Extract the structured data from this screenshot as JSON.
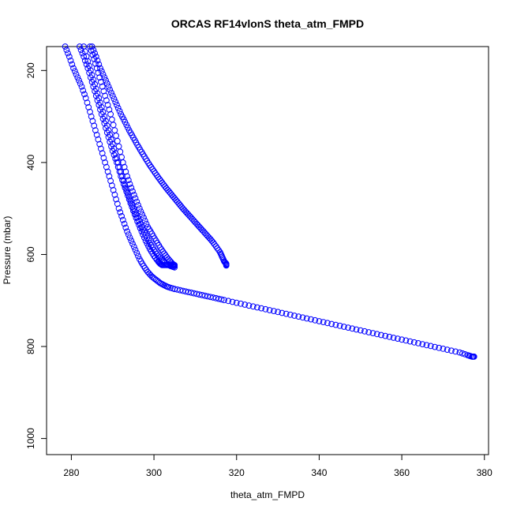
{
  "chart_data": {
    "type": "scatter",
    "title": "ORCAS RF14vlonS theta_atm_FMPD",
    "xlabel": "theta_atm_FMPD",
    "ylabel": "Pressure (mbar)",
    "xlim": [
      274,
      381
    ],
    "ylim": [
      1035,
      148
    ],
    "y_reversed": true,
    "grid": false,
    "legend": "none",
    "marker": "open-circle",
    "color": "#0000ff",
    "xticks": [
      280,
      300,
      320,
      340,
      360,
      380
    ],
    "yticks": [
      200,
      400,
      600,
      800,
      1000
    ],
    "series": [
      {
        "points": [
          [
            278.5,
            148
          ],
          [
            279.5,
            170
          ],
          [
            280.5,
            195
          ],
          [
            281.5,
            215
          ],
          [
            282.5,
            235
          ],
          [
            283.5,
            260
          ],
          [
            284.5,
            290
          ],
          [
            285.5,
            320
          ],
          [
            286.5,
            350
          ],
          [
            287.5,
            380
          ],
          [
            288.5,
            410
          ],
          [
            289.5,
            440
          ],
          [
            290.5,
            470
          ],
          [
            291.5,
            500
          ],
          [
            292.5,
            525
          ],
          [
            293.5,
            550
          ],
          [
            294.5,
            570
          ],
          [
            295.5,
            590
          ],
          [
            296.5,
            610
          ],
          [
            297.5,
            625
          ],
          [
            298.5,
            638
          ],
          [
            299.5,
            648
          ],
          [
            300.5,
            655
          ],
          [
            301.5,
            662
          ],
          [
            302.5,
            667
          ],
          [
            303.5,
            671
          ],
          [
            305,
            675
          ],
          [
            307,
            679
          ],
          [
            309,
            683
          ],
          [
            311,
            687
          ],
          [
            313,
            691
          ],
          [
            315,
            695
          ],
          [
            317,
            699
          ],
          [
            320,
            705
          ],
          [
            323,
            711
          ],
          [
            326,
            717
          ],
          [
            329,
            723
          ],
          [
            332,
            729
          ],
          [
            335,
            735
          ],
          [
            338,
            741
          ],
          [
            341,
            747
          ],
          [
            344,
            753
          ],
          [
            347,
            759
          ],
          [
            350,
            765
          ],
          [
            353,
            771
          ],
          [
            356,
            777
          ],
          [
            359,
            783
          ],
          [
            362,
            789
          ],
          [
            365,
            795
          ],
          [
            368,
            801
          ],
          [
            371,
            807
          ],
          [
            374,
            813
          ],
          [
            376,
            819
          ],
          [
            377,
            822
          ],
          [
            377.5,
            822
          ]
        ]
      },
      {
        "points": [
          [
            282,
            148
          ],
          [
            283,
            170
          ],
          [
            284,
            195
          ],
          [
            285,
            225
          ],
          [
            286,
            255
          ],
          [
            287,
            285
          ],
          [
            288,
            315
          ],
          [
            289,
            345
          ],
          [
            290,
            375
          ],
          [
            291,
            400
          ],
          [
            292,
            430
          ],
          [
            293,
            455
          ],
          [
            294,
            480
          ],
          [
            295,
            505
          ],
          [
            296,
            528
          ],
          [
            297,
            550
          ],
          [
            298,
            570
          ],
          [
            299,
            588
          ],
          [
            300,
            603
          ],
          [
            301,
            615
          ],
          [
            301.5,
            620
          ],
          [
            302,
            623
          ],
          [
            303,
            623
          ],
          [
            304,
            623
          ],
          [
            305,
            623
          ]
        ]
      },
      {
        "points": [
          [
            283,
            148
          ],
          [
            284,
            180
          ],
          [
            285,
            210
          ],
          [
            286,
            240
          ],
          [
            287,
            270
          ],
          [
            288,
            300
          ],
          [
            289,
            330
          ],
          [
            290,
            360
          ],
          [
            291,
            390
          ],
          [
            292,
            420
          ],
          [
            293,
            450
          ],
          [
            294,
            475
          ],
          [
            295,
            500
          ],
          [
            296,
            520
          ],
          [
            297,
            540
          ],
          [
            298,
            558
          ],
          [
            299,
            575
          ],
          [
            300,
            590
          ],
          [
            301,
            603
          ],
          [
            302,
            613
          ],
          [
            303,
            620
          ],
          [
            304,
            625
          ],
          [
            305,
            628
          ]
        ]
      },
      {
        "points": [
          [
            284.5,
            148
          ],
          [
            285.5,
            175
          ],
          [
            286.5,
            205
          ],
          [
            287.5,
            235
          ],
          [
            288.5,
            265
          ],
          [
            289.5,
            295
          ],
          [
            290.5,
            330
          ],
          [
            291.5,
            365
          ],
          [
            292.5,
            400
          ],
          [
            293.5,
            430
          ],
          [
            294.5,
            455
          ],
          [
            295.5,
            478
          ],
          [
            296.5,
            500
          ],
          [
            297.5,
            520
          ],
          [
            298.5,
            540
          ],
          [
            299.5,
            555
          ],
          [
            300.5,
            570
          ],
          [
            301.5,
            585
          ],
          [
            302.5,
            598
          ],
          [
            303.5,
            610
          ],
          [
            304.5,
            620
          ],
          [
            305,
            625
          ]
        ]
      },
      {
        "points": [
          [
            285,
            148
          ],
          [
            286,
            170
          ],
          [
            287,
            195
          ],
          [
            288,
            215
          ],
          [
            289,
            235
          ],
          [
            290,
            255
          ],
          [
            291,
            275
          ],
          [
            292,
            295
          ],
          [
            293,
            312
          ],
          [
            294,
            330
          ],
          [
            295,
            346
          ],
          [
            296,
            362
          ],
          [
            297,
            377
          ],
          [
            298,
            392
          ],
          [
            299,
            406
          ],
          [
            300,
            419
          ],
          [
            301,
            432
          ],
          [
            302,
            444
          ],
          [
            303,
            456
          ],
          [
            304,
            467
          ],
          [
            305,
            478
          ],
          [
            306,
            489
          ],
          [
            307,
            500
          ],
          [
            308,
            510
          ],
          [
            309,
            520
          ],
          [
            310,
            530
          ],
          [
            311,
            540
          ],
          [
            312,
            550
          ],
          [
            313,
            560
          ],
          [
            314,
            570
          ],
          [
            315,
            582
          ],
          [
            316,
            595
          ],
          [
            316.5,
            605
          ],
          [
            317,
            615
          ],
          [
            317.5,
            620
          ],
          [
            317.5,
            624
          ]
        ]
      }
    ]
  }
}
